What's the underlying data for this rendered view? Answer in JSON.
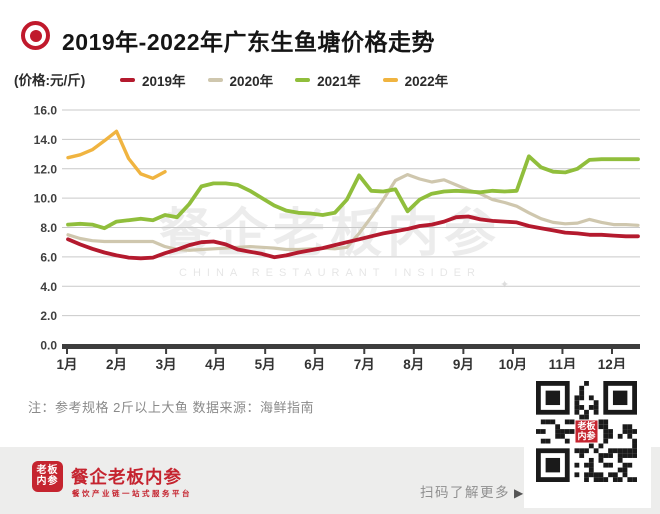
{
  "header": {
    "title": "2019年-2022年广东生鱼塘价格走势",
    "unit_label": "(价格:元/斤)"
  },
  "legend": {
    "items": [
      {
        "label": "2019年",
        "color": "#b41a2e"
      },
      {
        "label": "2020年",
        "color": "#cfc7ae"
      },
      {
        "label": "2021年",
        "color": "#90be3c"
      },
      {
        "label": "2022年",
        "color": "#f0b440"
      }
    ]
  },
  "chart_data": {
    "type": "line",
    "title": "2019年-2022年广东生鱼塘价格走势",
    "ylabel": "(价格:元/斤)",
    "ylim": [
      0,
      16
    ],
    "grid": "horizontal-only",
    "legend_position": "top",
    "y_ticks": [
      "16.0",
      "14.0",
      "12.0",
      "10.0",
      "8.0",
      "6.0",
      "4.0",
      "2.0",
      "0.0"
    ],
    "x_categories": [
      "1月",
      "2月",
      "3月",
      "4月",
      "5月",
      "6月",
      "7月",
      "8月",
      "9月",
      "10月",
      "11月",
      "12月"
    ],
    "points_per_month": 4,
    "series": [
      {
        "name": "2019年",
        "color": "#b41a2e",
        "values": [
          7.2,
          6.85,
          6.55,
          6.3,
          6.1,
          5.95,
          5.9,
          5.95,
          6.25,
          6.5,
          6.8,
          7.0,
          7.05,
          6.85,
          6.5,
          6.35,
          6.2,
          5.98,
          6.1,
          6.3,
          6.45,
          6.6,
          6.8,
          7.0,
          7.2,
          7.4,
          7.6,
          7.75,
          7.9,
          8.1,
          8.2,
          8.4,
          8.7,
          8.75,
          8.55,
          8.45,
          8.4,
          8.35,
          8.1,
          7.95,
          7.8,
          7.65,
          7.6,
          7.5,
          7.5,
          7.45,
          7.4,
          7.4
        ]
      },
      {
        "name": "2020年",
        "color": "#cfc7ae",
        "values": [
          7.5,
          7.25,
          7.1,
          7.05,
          7.05,
          7.05,
          7.05,
          7.05,
          6.7,
          6.5,
          6.45,
          6.5,
          6.55,
          6.6,
          6.65,
          6.7,
          6.65,
          6.6,
          6.5,
          6.5,
          6.55,
          6.6,
          6.55,
          6.65,
          7.6,
          8.7,
          9.9,
          11.2,
          11.6,
          11.3,
          11.1,
          11.25,
          10.9,
          10.55,
          10.3,
          9.9,
          9.7,
          9.45,
          9.0,
          8.6,
          8.35,
          8.25,
          8.3,
          8.55,
          8.35,
          8.2,
          8.2,
          8.15
        ]
      },
      {
        "name": "2021年",
        "color": "#90be3c",
        "values": [
          8.2,
          8.25,
          8.2,
          7.95,
          8.4,
          8.5,
          8.6,
          8.5,
          8.85,
          8.7,
          9.6,
          10.8,
          11.0,
          11.0,
          10.9,
          10.5,
          10.0,
          9.5,
          9.15,
          9.0,
          8.95,
          8.85,
          9.0,
          9.9,
          11.55,
          10.5,
          10.45,
          10.6,
          9.1,
          9.9,
          10.3,
          10.45,
          10.5,
          10.45,
          10.4,
          10.5,
          10.45,
          10.5,
          12.85,
          12.1,
          11.8,
          11.75,
          12.0,
          12.6,
          12.65,
          12.65,
          12.65,
          12.65
        ]
      },
      {
        "name": "2022年",
        "color": "#f0b440",
        "values": [
          12.75,
          12.95,
          13.3,
          13.9,
          14.55,
          12.7,
          11.65,
          11.35,
          11.8
        ]
      }
    ]
  },
  "watermark": {
    "cjk": "餐企老板内参",
    "en": "CHINA RESTAURANT INSIDER",
    "star": "✦"
  },
  "note": "注：参考规格 2斤以上大鱼  数据来源：海鲜指南",
  "footer": {
    "logo_line1": "老板",
    "logo_line2": "内参",
    "brand": "餐企老板内参",
    "tagline": "餐饮产业链一站式服务平台",
    "cta": "扫码了解更多",
    "cta_arrow": "▶",
    "qr_center_line1": "老板",
    "qr_center_line2": "内参"
  },
  "colors": {
    "brand_red": "#c5242f",
    "bullseye_red": "#c0192c",
    "gridline": "#c9c9c9",
    "axis": "#3d3d3d",
    "tick_label": "#3f3f3f",
    "month_label": "#333333",
    "note_gray": "#8a8a8a",
    "footer_band": "#ededec"
  }
}
